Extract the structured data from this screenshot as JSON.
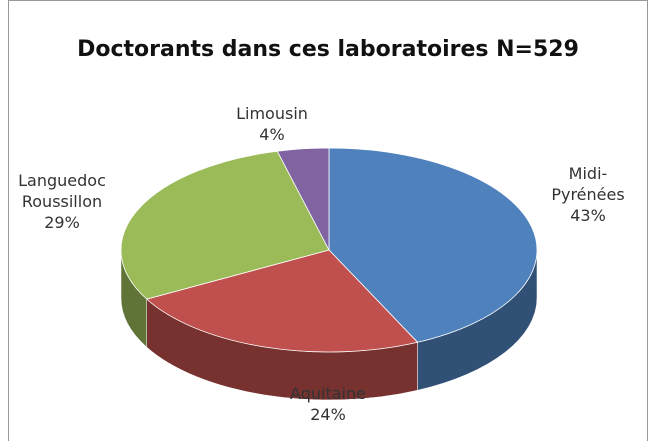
{
  "chart_data": {
    "type": "pie",
    "title": "Doctorants dans ces laboratoires N=529",
    "categories": [
      "Midi-Pyrénées",
      "Aquitaine",
      "Languedoc Roussillon",
      "Limousin"
    ],
    "values": [
      43,
      24,
      29,
      4
    ],
    "value_labels": [
      "43%",
      "24%",
      "29%",
      "4%"
    ],
    "colors": [
      "#4f81bd",
      "#c0504d",
      "#9bbb59",
      "#8064a2"
    ]
  }
}
